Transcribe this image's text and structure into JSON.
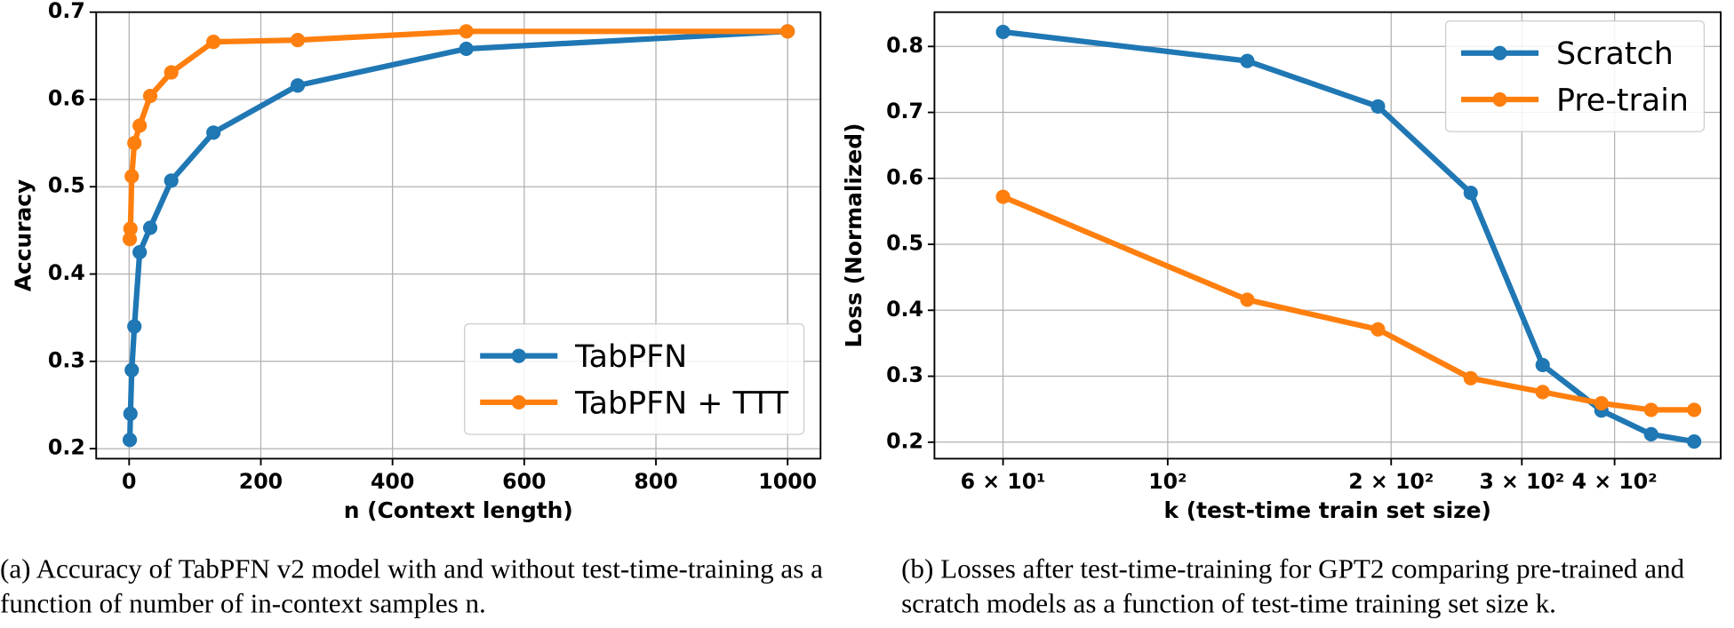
{
  "chart_data": [
    {
      "type": "line",
      "caption": "(a) Accuracy of TabPFN v2 model with and without test-time-training as a function of number of in-context samples n.",
      "x_label": "n (Context length)",
      "y_label": "Accuracy",
      "x": [
        1,
        2,
        4,
        8,
        16,
        32,
        64,
        128,
        256,
        512,
        1000
      ],
      "series": [
        {
          "name": "TabPFN",
          "color": "#1f77b4",
          "values": [
            0.21,
            0.24,
            0.29,
            0.34,
            0.425,
            0.453,
            0.507,
            0.562,
            0.616,
            0.658,
            0.678
          ]
        },
        {
          "name": "TabPFN + TTT",
          "color": "#ff7f0e",
          "values": [
            0.44,
            0.452,
            0.512,
            0.55,
            0.57,
            0.604,
            0.631,
            0.666,
            0.668,
            0.678,
            0.678
          ]
        }
      ],
      "xlim": [
        -50,
        1050
      ],
      "xticks": [
        0,
        200,
        400,
        600,
        800,
        1000
      ],
      "ylim": [
        0.1885,
        0.7
      ],
      "yticks": [
        0.2,
        0.3,
        0.4,
        0.5,
        0.6,
        0.7
      ],
      "xscale": "linear",
      "grid": true,
      "legend": "lower right"
    },
    {
      "type": "line",
      "caption": "(b) Losses after test-time-training for GPT2 comparing pre-trained and scratch models as a function of test-time training set size k.",
      "x_label": "k (test-time train set size)",
      "y_label": "Loss (Normalized)",
      "x": [
        60,
        128,
        192,
        256,
        320,
        384,
        448,
        512
      ],
      "series": [
        {
          "name": "Scratch",
          "color": "#1f77b4",
          "values": [
            0.822,
            0.778,
            0.709,
            0.578,
            0.317,
            0.248,
            0.212,
            0.201
          ]
        },
        {
          "name": "Pre-train",
          "color": "#ff7f0e",
          "values": [
            0.572,
            0.416,
            0.371,
            0.297,
            0.276,
            0.259,
            0.249,
            0.249
          ]
        }
      ],
      "xlim": [
        48.5,
        556
      ],
      "xticks": [
        {
          "value": 60,
          "label": "6 × 10¹"
        },
        {
          "value": 100,
          "label": "10²"
        },
        {
          "value": 200,
          "label": "2 × 10²"
        },
        {
          "value": 300,
          "label": "3 × 10²"
        },
        {
          "value": 400,
          "label": "4 × 10²"
        }
      ],
      "ylim": [
        0.175,
        0.852
      ],
      "yticks": [
        0.2,
        0.3,
        0.4,
        0.5,
        0.6,
        0.7,
        0.8
      ],
      "xscale": "log",
      "grid": true,
      "legend": "upper right"
    }
  ]
}
